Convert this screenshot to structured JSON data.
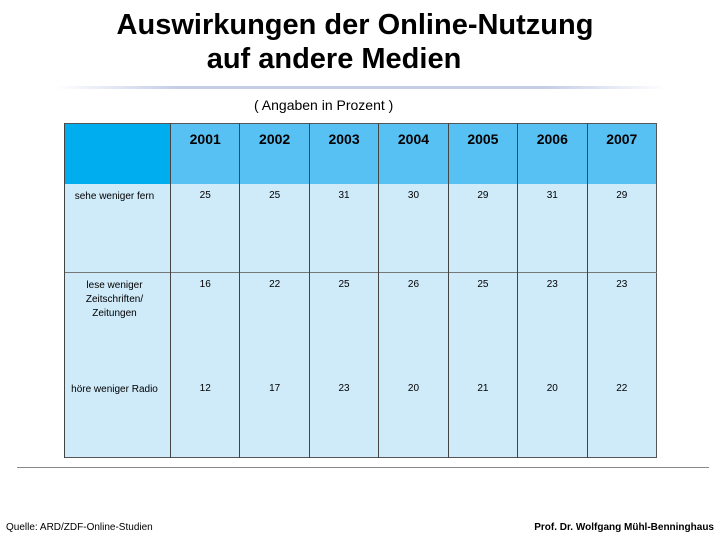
{
  "title": {
    "line1": "Auswirkungen der Online-Nutzung",
    "line2": "auf andere Medien"
  },
  "subtitle": "( Angaben in Prozent )",
  "table": {
    "years": [
      "2001",
      "2002",
      "2003",
      "2004",
      "2005",
      "2006",
      "2007"
    ],
    "rows": [
      {
        "label": "sehe weniger fern",
        "values": [
          "25",
          "25",
          "31",
          "30",
          "29",
          "31",
          "29"
        ]
      },
      {
        "label": "lese weniger Zeitschriften/ Zeitungen",
        "values": [
          "16",
          "22",
          "25",
          "26",
          "25",
          "23",
          "23"
        ]
      },
      {
        "label": "höre weniger Radio",
        "values": [
          "12",
          "17",
          "23",
          "20",
          "21",
          "20",
          "22"
        ]
      }
    ]
  },
  "footer": {
    "source": "Quelle: ARD/ZDF-Online-Studien",
    "author": "Prof. Dr. Wolfgang Mühl-Benninghaus"
  },
  "colors": {
    "header_bg": "#58c1f4",
    "corner_bg": "#00aeef",
    "body_bg": "#cfeaf9"
  }
}
